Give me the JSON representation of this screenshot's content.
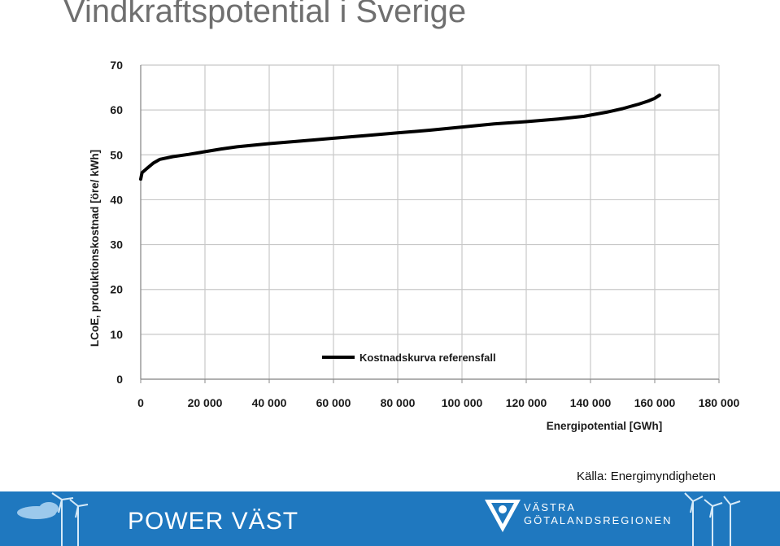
{
  "title": "Vindkraftspotential i Sverige",
  "source": "Källa: Energimyndigheten",
  "footer": {
    "brand_left": "POWER VÄST",
    "brand_right_line1": "VÄSTRA",
    "brand_right_line2": "GÖTALANDSREGIONEN",
    "icons": [
      "wind-turbine-icon",
      "cloud-icon",
      "vgr-logo-icon"
    ]
  },
  "chart_data": {
    "type": "line",
    "xlabel": "Energipotential [GWh]",
    "ylabel": "LCoE, produktionskostnad [öre/ kWh]",
    "xlim": [
      0,
      180000
    ],
    "ylim": [
      0,
      70
    ],
    "x_ticks": [
      0,
      20000,
      40000,
      60000,
      80000,
      100000,
      120000,
      140000,
      160000,
      180000
    ],
    "x_tick_labels": [
      "0",
      "20 000",
      "40 000",
      "60 000",
      "80 000",
      "100 000",
      "120 000",
      "140 000",
      "160 000",
      "180 000"
    ],
    "y_ticks": [
      0,
      10,
      20,
      30,
      40,
      50,
      60,
      70
    ],
    "y_tick_labels": [
      "0",
      "10",
      "20",
      "30",
      "40",
      "50",
      "60",
      "70"
    ],
    "grid": true,
    "legend_position": "bottom-center",
    "line_color": "#000000",
    "series": [
      {
        "name": "Kostnadskurva referensfall",
        "points": [
          [
            0,
            44.6
          ],
          [
            400,
            46.0
          ],
          [
            2000,
            47.0
          ],
          [
            4000,
            48.2
          ],
          [
            6000,
            49.0
          ],
          [
            10000,
            49.6
          ],
          [
            15000,
            50.1
          ],
          [
            20000,
            50.7
          ],
          [
            25000,
            51.3
          ],
          [
            30000,
            51.8
          ],
          [
            40000,
            52.5
          ],
          [
            50000,
            53.1
          ],
          [
            60000,
            53.7
          ],
          [
            70000,
            54.3
          ],
          [
            80000,
            54.9
          ],
          [
            90000,
            55.5
          ],
          [
            100000,
            56.2
          ],
          [
            110000,
            56.9
          ],
          [
            120000,
            57.4
          ],
          [
            130000,
            58.0
          ],
          [
            138000,
            58.6
          ],
          [
            145000,
            59.5
          ],
          [
            150000,
            60.3
          ],
          [
            155000,
            61.3
          ],
          [
            158000,
            62.0
          ],
          [
            160000,
            62.6
          ],
          [
            161500,
            63.3
          ]
        ]
      }
    ]
  }
}
